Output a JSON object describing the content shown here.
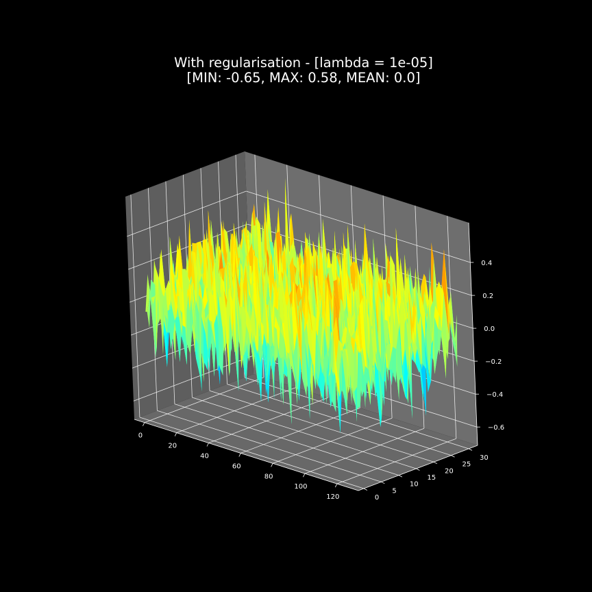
{
  "chart_data": {
    "type": "surface3d",
    "title": {
      "line1": "With regularisation - [lambda = 1e-05]",
      "line2": "[MIN: -0.65, MAX: 0.58, MEAN: 0.0]"
    },
    "stats": {
      "min": -0.65,
      "max": 0.58,
      "mean": 0.0
    },
    "xlabel": "",
    "ylabel": "",
    "zlabel": "",
    "x_ticks": [
      "0",
      "20",
      "40",
      "60",
      "80",
      "100",
      "120"
    ],
    "y_ticks": [
      "0",
      "5",
      "10",
      "15",
      "20",
      "25",
      "30"
    ],
    "z_ticks": [
      "−0.6",
      "−0.4",
      "−0.2",
      "0.0",
      "0.2",
      "0.4"
    ],
    "xlim": [
      -6.35,
      133.35
    ],
    "ylim": [
      -1.55,
      32.55
    ],
    "zlim": [
      -0.7115,
      0.6415
    ],
    "grid_shape": [
      128,
      32
    ],
    "colormap": "jet",
    "grid": true,
    "background": "#000000",
    "pane_color": "#6e6e6e",
    "colors": {
      "text": "#ffffff",
      "grid": "#ffffff",
      "background": "#000000",
      "pane": "#6e6e6e"
    }
  }
}
